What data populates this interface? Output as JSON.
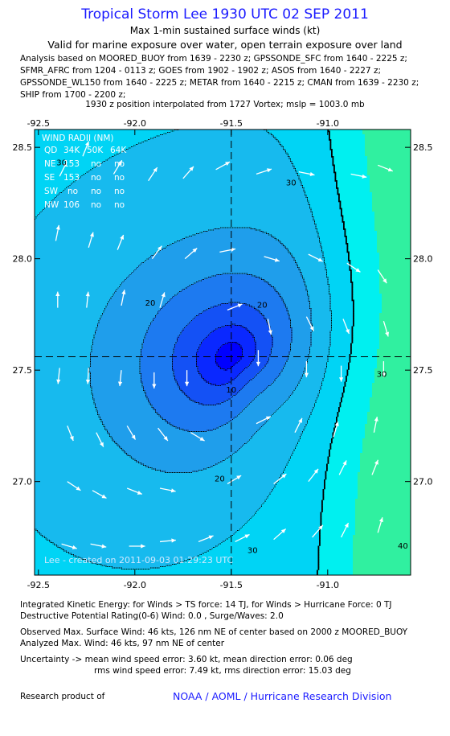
{
  "header": {
    "title": "Tropical Storm Lee 1930 UTC 02 SEP 2011",
    "subtitle": "Max 1-min sustained surface winds (kt)",
    "valid_note": "Valid for marine exposure over water, open terrain exposure over land"
  },
  "analysis_lines": [
    "Analysis based on MOORED_BUOY from 1639 - 2230 z; GPSSONDE_SFC from 1640 - 2225 z;",
    "SFMR_AFRC from 1204 - 0113 z; GOES from 1902 - 1902 z; ASOS from 1640 - 2227 z;",
    "GPSSONDE_WL150 from 1640 - 2225 z; METAR from 1640 - 2215 z; CMAN from 1639 - 2230 z;",
    "SHIP from 1700 - 2200 z;"
  ],
  "position_note": "1930 z position interpolated from 1727 Vortex; mslp = 1003.0 mb",
  "wind_radii": {
    "title": "WIND RADII (NM)",
    "header": [
      "QD",
      "34K",
      "50K",
      "64K"
    ],
    "rows": [
      [
        "NE",
        "153",
        "no",
        "no"
      ],
      [
        "SE",
        "153",
        "no",
        "no"
      ],
      [
        "SW",
        "no",
        "no",
        "no"
      ],
      [
        "NW",
        "106",
        "no",
        "no"
      ]
    ]
  },
  "created_label": "Lee - created on 2011-09-03 01:29:23 UTC",
  "stats": {
    "ike": "Integrated Kinetic Energy:  for Winds > TS force: 14 TJ,  for Winds > Hurricane Force: 0 TJ",
    "destructive": "Destructive Potential Rating(0-6)   Wind: 0.0 , Surge/Waves: 2.0",
    "observed_max": "Observed Max. Surface Wind: 46 kts, 126 nm NE of center based on 2000 z MOORED_BUOY",
    "analyzed_max": "Analyzed Max. Wind: 46 kts, 97 nm NE of center",
    "uncertainty_1": "Uncertainty -> mean wind speed error: 3.60 kt,   mean direction error: 0.06 deg",
    "uncertainty_2": "rms wind speed error: 7.49 kt,   rms direction error: 15.03 deg"
  },
  "footer": {
    "research_label": "Research product of",
    "org": "NOAA / AOML / Hurricane Research Division"
  },
  "chart_data": {
    "type": "heatmap",
    "xlim": [
      -92.52,
      -90.57
    ],
    "ylim": [
      26.58,
      28.58
    ],
    "x_ticks": [
      -92.5,
      -92.0,
      -91.5,
      -91.0
    ],
    "y_ticks": [
      27.0,
      27.5,
      28.0,
      28.5
    ],
    "x_tick_labels": [
      "-92.5",
      "-92.0",
      "-91.5",
      "-91.0"
    ],
    "y_tick_labels": [
      "27.0",
      "27.5",
      "28.0",
      "28.5"
    ],
    "center": {
      "lon": -91.5,
      "lat": 27.56
    },
    "levels": [
      {
        "kt": 0,
        "color": "#0000ff"
      },
      {
        "kt": 5,
        "color": "#0a28ff"
      },
      {
        "kt": 10,
        "color": "#1451f5"
      },
      {
        "kt": 15,
        "color": "#1d7af0"
      },
      {
        "kt": 20,
        "color": "#1f9eeb"
      },
      {
        "kt": 25,
        "color": "#17baee"
      },
      {
        "kt": 30,
        "color": "#00d4f5"
      },
      {
        "kt": 35,
        "color": "#00f0f0"
      },
      {
        "kt": 40,
        "color": "#30f0a0"
      }
    ],
    "contour_labels": [
      {
        "text": "10",
        "lon": -91.5,
        "lat": 27.4
      },
      {
        "text": "20",
        "lon": -91.92,
        "lat": 27.79
      },
      {
        "text": "20",
        "lon": -91.34,
        "lat": 27.78
      },
      {
        "text": "20",
        "lon": -91.56,
        "lat": 27.0
      },
      {
        "text": "30",
        "lon": -92.38,
        "lat": 28.42
      },
      {
        "text": "30",
        "lon": -91.19,
        "lat": 28.33
      },
      {
        "text": "30",
        "lon": -90.72,
        "lat": 27.47
      },
      {
        "text": "30",
        "lon": -91.39,
        "lat": 26.68
      },
      {
        "text": "40",
        "lon": -90.61,
        "lat": 26.7
      }
    ],
    "ts_isotach_kt": 34,
    "vectors": [
      [
        -92.39,
        28.37,
        0.5,
        1.0
      ],
      [
        -92.27,
        28.46,
        0.4,
        1.0
      ],
      [
        -92.11,
        28.38,
        0.6,
        1.0
      ],
      [
        -91.93,
        28.35,
        0.6,
        0.9
      ],
      [
        -91.75,
        28.36,
        0.7,
        0.8
      ],
      [
        -91.58,
        28.4,
        0.9,
        0.5
      ],
      [
        -91.37,
        28.38,
        0.9,
        0.3
      ],
      [
        -91.15,
        28.39,
        1.0,
        -0.2
      ],
      [
        -90.88,
        28.38,
        1.0,
        -0.2
      ],
      [
        -90.74,
        28.42,
        1.0,
        -0.4
      ],
      [
        -92.41,
        28.08,
        0.2,
        1.0
      ],
      [
        -92.24,
        28.05,
        0.3,
        1.0
      ],
      [
        -92.09,
        28.04,
        0.4,
        1.0
      ],
      [
        -91.91,
        28.0,
        0.6,
        0.8
      ],
      [
        -91.74,
        28.0,
        0.8,
        0.7
      ],
      [
        -91.56,
        28.03,
        1.0,
        0.2
      ],
      [
        -91.33,
        28.01,
        1.0,
        -0.3
      ],
      [
        -91.1,
        28.02,
        1.0,
        -0.5
      ],
      [
        -90.9,
        27.98,
        0.9,
        -0.6
      ],
      [
        -90.74,
        27.95,
        0.6,
        -0.9
      ],
      [
        -92.4,
        27.78,
        0.0,
        1.0
      ],
      [
        -92.25,
        27.78,
        0.1,
        1.0
      ],
      [
        -92.07,
        27.79,
        0.2,
        1.0
      ],
      [
        -91.87,
        27.78,
        0.3,
        1.0
      ],
      [
        -91.52,
        27.77,
        1.0,
        0.4
      ],
      [
        -91.31,
        27.73,
        0.2,
        -1.0
      ],
      [
        -91.11,
        27.74,
        0.5,
        -1.0
      ],
      [
        -90.92,
        27.73,
        0.4,
        -1.0
      ],
      [
        -90.71,
        27.72,
        0.3,
        -1.0
      ],
      [
        -92.39,
        27.51,
        -0.1,
        -1.0
      ],
      [
        -92.24,
        27.51,
        -0.05,
        -1.0
      ],
      [
        -92.07,
        27.5,
        -0.1,
        -1.0
      ],
      [
        -91.9,
        27.49,
        0.0,
        -1.0
      ],
      [
        -91.73,
        27.5,
        0.0,
        -1.0
      ],
      [
        -91.36,
        27.59,
        0.0,
        -1.0
      ],
      [
        -91.11,
        27.54,
        0.0,
        -1.0
      ],
      [
        -90.93,
        27.52,
        0.0,
        -1.0
      ],
      [
        -90.71,
        27.54,
        0.0,
        -1.0
      ],
      [
        -92.35,
        27.25,
        0.4,
        -1.0
      ],
      [
        -92.2,
        27.22,
        0.5,
        -1.0
      ],
      [
        -92.04,
        27.25,
        0.6,
        -1.0
      ],
      [
        -91.88,
        27.24,
        0.7,
        -0.9
      ],
      [
        -91.71,
        27.22,
        1.0,
        -0.6
      ],
      [
        -91.37,
        27.26,
        1.0,
        0.5
      ],
      [
        -91.17,
        27.22,
        0.5,
        1.0
      ],
      [
        -90.97,
        27.2,
        0.3,
        1.0
      ],
      [
        -90.76,
        27.22,
        0.2,
        1.0
      ],
      [
        -92.35,
        27.0,
        0.9,
        -0.6
      ],
      [
        -92.22,
        26.96,
        0.9,
        -0.5
      ],
      [
        -92.04,
        26.97,
        1.0,
        -0.4
      ],
      [
        -91.87,
        26.97,
        1.0,
        -0.2
      ],
      [
        -91.52,
        26.99,
        1.0,
        0.6
      ],
      [
        -91.28,
        26.99,
        0.9,
        0.7
      ],
      [
        -91.1,
        27.0,
        0.7,
        0.9
      ],
      [
        -90.94,
        27.03,
        0.5,
        1.0
      ],
      [
        -90.77,
        27.03,
        0.4,
        1.0
      ],
      [
        -92.38,
        26.72,
        1.0,
        -0.3
      ],
      [
        -92.23,
        26.72,
        1.0,
        -0.2
      ],
      [
        -92.03,
        26.71,
        1.0,
        0.0
      ],
      [
        -91.87,
        26.73,
        1.0,
        0.1
      ],
      [
        -91.67,
        26.73,
        1.0,
        0.4
      ],
      [
        -91.48,
        26.73,
        1.0,
        0.5
      ],
      [
        -91.28,
        26.74,
        0.8,
        0.7
      ],
      [
        -91.08,
        26.75,
        0.7,
        0.8
      ],
      [
        -90.93,
        26.75,
        0.5,
        1.0
      ],
      [
        -90.74,
        26.77,
        0.3,
        1.0
      ]
    ]
  }
}
